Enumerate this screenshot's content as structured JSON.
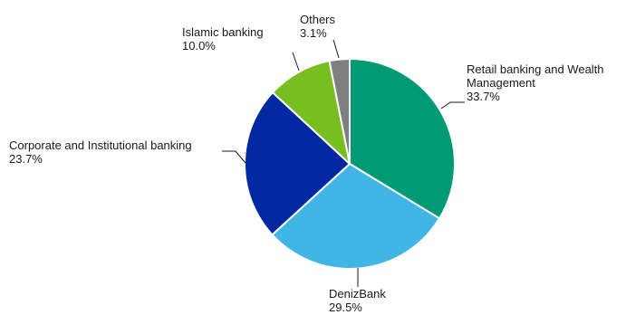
{
  "chart_data": {
    "type": "pie",
    "title": "",
    "start_angle_deg": 0,
    "direction": "clockwise",
    "slices": [
      {
        "label": "Retail banking and Wealth Management",
        "label_lines": [
          "Retail banking and Wealth",
          "Management"
        ],
        "value": 33.7,
        "value_text": "33.7%",
        "color": "#009a74"
      },
      {
        "label": "DenizBank",
        "label_lines": [
          "DenizBank"
        ],
        "value": 29.5,
        "value_text": "29.5%",
        "color": "#41b6e6"
      },
      {
        "label": "Corporate and Institutional banking",
        "label_lines": [
          "Corporate and Institutional banking"
        ],
        "value": 23.7,
        "value_text": "23.7%",
        "color": "#0028a0"
      },
      {
        "label": "Islamic banking",
        "label_lines": [
          "Islamic banking"
        ],
        "value": 10.0,
        "value_text": "10.0%",
        "color": "#78be20"
      },
      {
        "label": "Others",
        "label_lines": [
          "Others"
        ],
        "value": 3.1,
        "value_text": "3.1%",
        "color": "#7f7f7f"
      }
    ]
  }
}
